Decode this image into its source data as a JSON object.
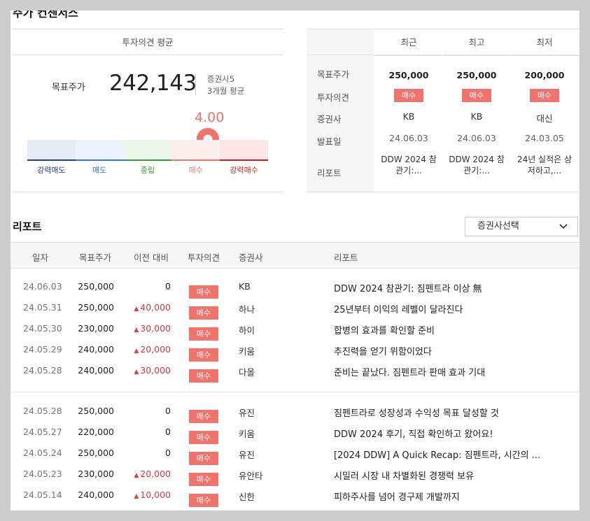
{
  "title": "주가 컨센서스",
  "consensus": {
    "header": "투자의견 평균",
    "target_label": "목표주가",
    "target_value": "242,143",
    "broker_count": "증권사5",
    "period": "3개월 평균",
    "score": "4.00",
    "score_value": 4.0,
    "gauge": [
      {
        "label": "강력매도",
        "color": "#1f3c88",
        "bg": "#e6edf7"
      },
      {
        "label": "매도",
        "color": "#3a78c9",
        "bg": "#eaf3fd"
      },
      {
        "label": "중립",
        "color": "#3a9a3a",
        "bg": "#ecf8ee"
      },
      {
        "label": "매수",
        "color": "#f0736c",
        "bg": "#fff0f0"
      },
      {
        "label": "강력매수",
        "color": "#c02020",
        "bg": "#fde6e7"
      }
    ]
  },
  "recent_table": {
    "row_labels": [
      "목표주가",
      "투자의견",
      "증권사",
      "발표일",
      "리포트"
    ],
    "columns": [
      {
        "header": "최근",
        "price": "250,000",
        "opinion": "매수",
        "broker": "KB",
        "date": "24.06.03",
        "report": "DDW 2024 참관기:..."
      },
      {
        "header": "최고",
        "price": "250,000",
        "opinion": "매수",
        "broker": "KB",
        "date": "24.06.03",
        "report": "DDW 2024 참관기:..."
      },
      {
        "header": "최저",
        "price": "200,000",
        "opinion": "매수",
        "broker": "대신",
        "date": "24.03.05",
        "report": "24년 실적은 상저하고,..."
      }
    ]
  },
  "reports": {
    "title": "리포트",
    "select_label": "증권사선택",
    "headers": {
      "date": "일자",
      "price": "목표주가",
      "diff": "이전 대비",
      "opinion": "투자의견",
      "broker": "증권사",
      "report": "리포트"
    },
    "rows": [
      {
        "date": "24.06.03",
        "price": "250,000",
        "diff": "0",
        "up": false,
        "opinion": "매수",
        "broker": "KB",
        "report": "DDW 2024 참관기: 짐펜트라 이상 無"
      },
      {
        "date": "24.05.31",
        "price": "250,000",
        "diff": "40,000",
        "up": true,
        "opinion": "매수",
        "broker": "하나",
        "report": "25년부터 이익의 레벨이 달라진다"
      },
      {
        "date": "24.05.30",
        "price": "230,000",
        "diff": "30,000",
        "up": true,
        "opinion": "매수",
        "broker": "하이",
        "report": "합병의 효과를 확인할 준비"
      },
      {
        "date": "24.05.29",
        "price": "240,000",
        "diff": "20,000",
        "up": true,
        "opinion": "매수",
        "broker": "키움",
        "report": "추진력을 얻기 위함이었다"
      },
      {
        "date": "24.05.28",
        "price": "240,000",
        "diff": "30,000",
        "up": true,
        "opinion": "매수",
        "broker": "다올",
        "report": "준비는 끝났다. 짐펜트라 판매 효과 기대"
      },
      {
        "date": "24.05.28",
        "price": "250,000",
        "diff": "0",
        "up": false,
        "opinion": "매수",
        "broker": "유진",
        "report": "짐펜트라로 성장성과 수익성 목표 달성할 것"
      },
      {
        "date": "24.05.27",
        "price": "220,000",
        "diff": "0",
        "up": false,
        "opinion": "매수",
        "broker": "키움",
        "report": "DDW 2024 후기, 직접 확인하고 왔어요!"
      },
      {
        "date": "24.05.24",
        "price": "250,000",
        "diff": "0",
        "up": false,
        "opinion": "매수",
        "broker": "유진",
        "report": "[2024 DDW] A Quick Recap: 짐펜트라, 시간의 ..."
      },
      {
        "date": "24.05.23",
        "price": "230,000",
        "diff": "20,000",
        "up": true,
        "opinion": "매수",
        "broker": "유안타",
        "report": "시밀러 시장 내 차별화된 경쟁력 보유"
      },
      {
        "date": "24.05.14",
        "price": "240,000",
        "diff": "10,000",
        "up": true,
        "opinion": "매수",
        "broker": "신한",
        "report": "피하주사를 넘어 경구제 개발까지"
      }
    ]
  }
}
